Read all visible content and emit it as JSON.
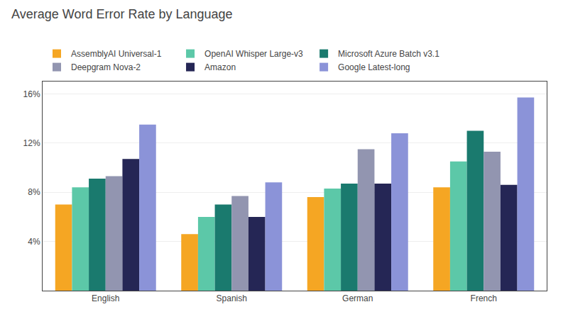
{
  "chart_data": {
    "type": "bar",
    "title": "Average Word Error Rate by Language",
    "categories": [
      "English",
      "Spanish",
      "German",
      "French"
    ],
    "series": [
      {
        "name": "AssemblyAI Universal-1",
        "color": "#F5A623",
        "values": [
          7.0,
          4.6,
          7.6,
          8.4
        ]
      },
      {
        "name": "OpenAI Whisper Large-v3",
        "color": "#5CC8A8",
        "values": [
          8.4,
          6.0,
          8.3,
          10.5
        ]
      },
      {
        "name": "Microsoft Azure Batch v3.1",
        "color": "#1A7A6E",
        "values": [
          9.1,
          7.0,
          8.7,
          13.0
        ]
      },
      {
        "name": "Deepgram Nova-2",
        "color": "#9295B0",
        "values": [
          9.3,
          7.7,
          11.5,
          11.3
        ]
      },
      {
        "name": "Amazon",
        "color": "#252655",
        "values": [
          10.7,
          6.0,
          8.7,
          8.6
        ]
      },
      {
        "name": "Google Latest-long",
        "color": "#8B93D8",
        "values": [
          13.5,
          8.8,
          12.8,
          15.7
        ]
      }
    ],
    "ylim": [
      0,
      17
    ],
    "yticks": [
      {
        "value": 0,
        "label": null
      },
      {
        "value": 4,
        "label": "4%"
      },
      {
        "value": 8,
        "label": "8%"
      },
      {
        "value": 12,
        "label": "12%"
      },
      {
        "value": 16,
        "label": "16%"
      }
    ],
    "grid": true,
    "legend": "top"
  }
}
